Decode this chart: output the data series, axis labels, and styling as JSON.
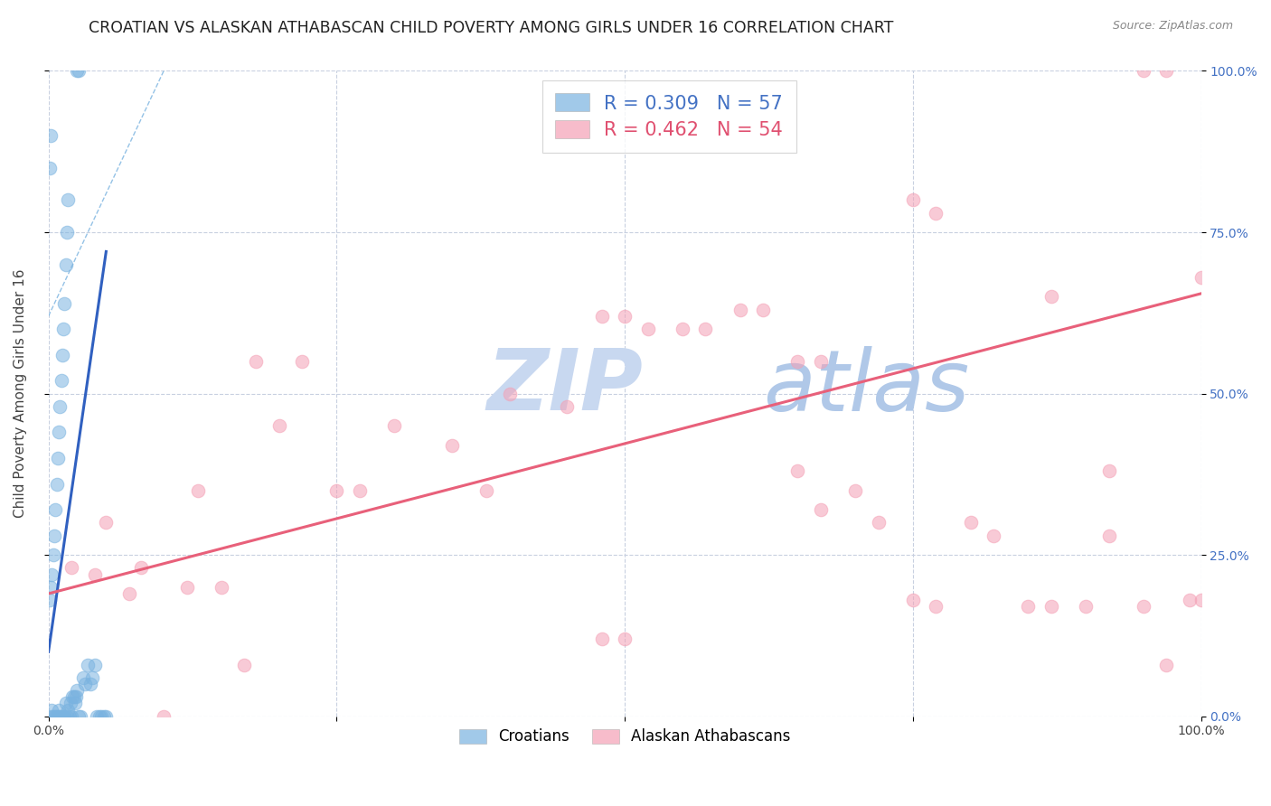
{
  "title": "CROATIAN VS ALASKAN ATHABASCAN CHILD POVERTY AMONG GIRLS UNDER 16 CORRELATION CHART",
  "source": "Source: ZipAtlas.com",
  "ylabel": "Child Poverty Among Girls Under 16",
  "xlim": [
    0.0,
    1.0
  ],
  "ylim": [
    0.0,
    1.0
  ],
  "ytick_labels_right": [
    "0.0%",
    "25.0%",
    "50.0%",
    "75.0%",
    "100.0%"
  ],
  "blue_color": "#7ab3e0",
  "pink_color": "#f4a0b5",
  "blue_line_color": "#3060c0",
  "pink_line_color": "#e8607a",
  "legend_blue_R": "0.309",
  "legend_blue_N": "57",
  "legend_pink_R": "0.462",
  "legend_pink_N": "54",
  "legend_blue_text_color": "#4472c4",
  "legend_pink_text_color": "#e05070",
  "watermark_zip": "ZIP",
  "watermark_atlas": "atlas",
  "watermark_zip_color": "#c8d8f0",
  "watermark_atlas_color": "#b0c8e8",
  "background_color": "#ffffff",
  "grid_color": "#c8d0e0",
  "blue_scatter_x": [
    0.003,
    0.003,
    0.004,
    0.006,
    0.007,
    0.008,
    0.009,
    0.01,
    0.011,
    0.012,
    0.013,
    0.014,
    0.015,
    0.016,
    0.017,
    0.018,
    0.019,
    0.02,
    0.021,
    0.022,
    0.023,
    0.024,
    0.025,
    0.026,
    0.028,
    0.03,
    0.032,
    0.034,
    0.036,
    0.038,
    0.04,
    0.042,
    0.044,
    0.046,
    0.048,
    0.05,
    0.001,
    0.002,
    0.003,
    0.004,
    0.005,
    0.006,
    0.007,
    0.008,
    0.009,
    0.01,
    0.011,
    0.012,
    0.013,
    0.014,
    0.001,
    0.002,
    0.025,
    0.026,
    0.015,
    0.016,
    0.017
  ],
  "blue_scatter_y": [
    0.0,
    0.01,
    0.0,
    0.0,
    0.0,
    0.0,
    0.01,
    0.0,
    0.0,
    0.0,
    0.0,
    0.0,
    0.02,
    0.0,
    0.01,
    0.0,
    0.02,
    0.0,
    0.03,
    0.03,
    0.02,
    0.03,
    0.04,
    0.0,
    0.0,
    0.06,
    0.05,
    0.08,
    0.05,
    0.06,
    0.08,
    0.0,
    0.0,
    0.0,
    0.0,
    0.0,
    0.18,
    0.2,
    0.22,
    0.25,
    0.28,
    0.32,
    0.36,
    0.4,
    0.44,
    0.48,
    0.52,
    0.56,
    0.6,
    0.64,
    0.85,
    0.9,
    1.0,
    1.0,
    0.7,
    0.75,
    0.8
  ],
  "pink_scatter_x": [
    0.02,
    0.04,
    0.05,
    0.07,
    0.08,
    0.1,
    0.12,
    0.13,
    0.15,
    0.17,
    0.18,
    0.2,
    0.22,
    0.25,
    0.27,
    0.3,
    0.35,
    0.38,
    0.4,
    0.45,
    0.48,
    0.5,
    0.52,
    0.55,
    0.57,
    0.6,
    0.62,
    0.65,
    0.67,
    0.7,
    0.72,
    0.75,
    0.77,
    0.8,
    0.82,
    0.85,
    0.87,
    0.9,
    0.92,
    0.95,
    0.97,
    0.99,
    1.0,
    0.48,
    0.5,
    0.65,
    0.67,
    0.75,
    0.77,
    0.87,
    0.92,
    0.95,
    0.97,
    1.0
  ],
  "pink_scatter_y": [
    0.23,
    0.22,
    0.3,
    0.19,
    0.23,
    0.0,
    0.2,
    0.35,
    0.2,
    0.08,
    0.55,
    0.45,
    0.55,
    0.35,
    0.35,
    0.45,
    0.42,
    0.35,
    0.5,
    0.48,
    0.62,
    0.62,
    0.6,
    0.6,
    0.6,
    0.63,
    0.63,
    0.38,
    0.32,
    0.35,
    0.3,
    0.18,
    0.17,
    0.3,
    0.28,
    0.17,
    0.17,
    0.17,
    0.28,
    0.17,
    0.08,
    0.18,
    0.18,
    0.12,
    0.12,
    0.55,
    0.55,
    0.8,
    0.78,
    0.65,
    0.38,
    1.0,
    1.0,
    0.68
  ],
  "blue_line_x": [
    0.0,
    0.05
  ],
  "blue_line_y": [
    0.1,
    0.72
  ],
  "dashed_line_x": [
    0.0,
    0.1
  ],
  "dashed_line_y": [
    0.62,
    1.0
  ],
  "pink_line_x": [
    0.0,
    1.0
  ],
  "pink_line_y": [
    0.19,
    0.655
  ],
  "dot_size": 110,
  "dot_alpha": 0.55,
  "title_fontsize": 12.5,
  "axis_label_fontsize": 11,
  "tick_fontsize": 10,
  "legend_fontsize": 14
}
